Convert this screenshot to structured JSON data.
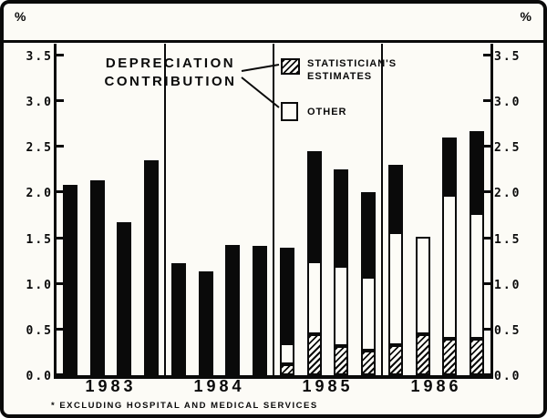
{
  "chart_data": {
    "type": "bar",
    "stacked": true,
    "title": "DEPRECIATION\nCONTRIBUTION",
    "y_unit_left": "%",
    "y_unit_right": "%",
    "ylim": [
      0,
      3.5
    ],
    "yticks": [
      "0.0",
      "0.5",
      "1.0",
      "1.5",
      "2.0",
      "2.5",
      "3.0",
      "3.5"
    ],
    "grid": false,
    "year_labels": [
      "1983",
      "1984",
      "1985",
      "1986"
    ],
    "bars_per_year": 4,
    "legend": [
      {
        "label": "STATISTICIAN'S\nESTIMATES",
        "style": "hatched"
      },
      {
        "label": "OTHER",
        "style": "white"
      }
    ],
    "series": [
      {
        "name": "STATISTICIAN'S ESTIMATES",
        "style": "hatched",
        "values": [
          0,
          0,
          0,
          0,
          0,
          0,
          0,
          0,
          0.12,
          0.45,
          0.32,
          0.27,
          0.33,
          0.45,
          0.4,
          0.4
        ]
      },
      {
        "name": "OTHER",
        "style": "white",
        "values": [
          0,
          0,
          0,
          0,
          0,
          0,
          0,
          0,
          0.23,
          0.8,
          0.88,
          0.81,
          1.24,
          1.07,
          1.57,
          1.38
        ]
      },
      {
        "name": "DEPRECIATION CONTRIBUTION",
        "style": "black",
        "values": [
          2.08,
          2.13,
          1.68,
          2.35,
          1.23,
          1.14,
          1.43,
          1.42,
          1.05,
          1.2,
          1.05,
          0.92,
          0.73,
          0,
          0.63,
          0.89
        ]
      }
    ],
    "totals": [
      2.08,
      2.13,
      1.68,
      2.35,
      1.23,
      1.14,
      1.43,
      1.42,
      1.4,
      2.45,
      2.25,
      2.0,
      2.3,
      1.52,
      2.6,
      2.67
    ],
    "footnote": "* EXCLUDING HOSPITAL AND MEDICAL SERVICES"
  }
}
